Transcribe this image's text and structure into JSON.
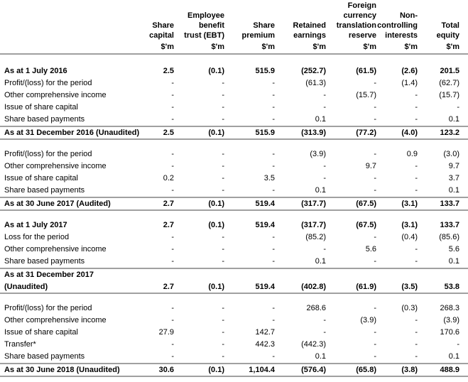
{
  "table": {
    "columns": [
      {
        "lines": [
          "Share",
          "capital"
        ],
        "unit": "$'m"
      },
      {
        "lines": [
          "Employee",
          "benefit",
          "trust (EBT)"
        ],
        "unit": "$'m"
      },
      {
        "lines": [
          "Share",
          "premium"
        ],
        "unit": "$'m"
      },
      {
        "lines": [
          "Retained",
          "earnings"
        ],
        "unit": "$'m"
      },
      {
        "lines": [
          "Foreign",
          "currency",
          "translation",
          "reserve"
        ],
        "unit": "$'m"
      },
      {
        "lines": [
          "Non-",
          "controlling",
          "interests"
        ],
        "unit": "$'m"
      },
      {
        "lines": [
          "Total",
          "equity"
        ],
        "unit": "$'m"
      }
    ],
    "groups": [
      [
        {
          "label": "As at 1 July 2016",
          "bold": true,
          "values": [
            "2.5",
            "(0.1)",
            "515.9",
            "(252.7)",
            "(61.5)",
            "(2.6)",
            "201.5"
          ]
        },
        {
          "label": "Profit/(loss) for the period",
          "values": [
            "-",
            "-",
            "-",
            "(61.3)",
            "-",
            "(1.4)",
            "(62.7)"
          ]
        },
        {
          "label": "Other comprehensive income",
          "values": [
            "-",
            "-",
            "-",
            "-",
            "(15.7)",
            "-",
            "(15.7)"
          ]
        },
        {
          "label": "Issue of share capital",
          "values": [
            "-",
            "-",
            "-",
            "-",
            "-",
            "-",
            "-"
          ]
        },
        {
          "label": "Share based payments",
          "values": [
            "-",
            "-",
            "-",
            "0.1",
            "-",
            "-",
            "0.1"
          ]
        },
        {
          "label": "As at 31 December 2016 (Unaudited)",
          "bold": true,
          "total": true,
          "values": [
            "2.5",
            "(0.1)",
            "515.9",
            "(313.9)",
            "(77.2)",
            "(4.0)",
            "123.2"
          ]
        }
      ],
      [
        {
          "label": "Profit/(loss) for the period",
          "values": [
            "-",
            "-",
            "-",
            "(3.9)",
            "-",
            "0.9",
            "(3.0)"
          ]
        },
        {
          "label": "Other comprehensive income",
          "values": [
            "-",
            "-",
            "-",
            "-",
            "9.7",
            "-",
            "9.7"
          ]
        },
        {
          "label": "Issue of share capital",
          "values": [
            "0.2",
            "-",
            "3.5",
            "-",
            "-",
            "-",
            "3.7"
          ]
        },
        {
          "label": "Share based payments",
          "values": [
            "-",
            "-",
            "-",
            "0.1",
            "-",
            "-",
            "0.1"
          ]
        },
        {
          "label": "As at 30 June 2017 (Audited)",
          "bold": true,
          "total": true,
          "values": [
            "2.7",
            "(0.1)",
            "519.4",
            "(317.7)",
            "(67.5)",
            "(3.1)",
            "133.7"
          ]
        }
      ],
      [
        {
          "label": "As at 1 July 2017",
          "bold": true,
          "values": [
            "2.7",
            "(0.1)",
            "519.4",
            "(317.7)",
            "(67.5)",
            "(3.1)",
            "133.7"
          ]
        },
        {
          "label": "Loss for the period",
          "values": [
            "-",
            "-",
            "-",
            "(85.2)",
            "-",
            "(0.4)",
            "(85.6)"
          ]
        },
        {
          "label": "Other comprehensive income",
          "values": [
            "-",
            "-",
            "-",
            "-",
            "5.6",
            "-",
            "5.6"
          ]
        },
        {
          "label": "Share based payments",
          "values": [
            "-",
            "-",
            "-",
            "0.1",
            "-",
            "-",
            "0.1"
          ]
        },
        {
          "label": [
            "As at 31 December 2017",
            "(Unaudited)"
          ],
          "bold": true,
          "total": true,
          "values": [
            "2.7",
            "(0.1)",
            "519.4",
            "(402.8)",
            "(61.9)",
            "(3.5)",
            "53.8"
          ]
        }
      ],
      [
        {
          "label": "Profit/(loss) for the period",
          "values": [
            "-",
            "-",
            "-",
            "268.6",
            "-",
            "(0.3)",
            "268.3"
          ]
        },
        {
          "label": "Other comprehensive income",
          "values": [
            "-",
            "-",
            "-",
            "-",
            "(3.9)",
            "-",
            "(3.9)"
          ]
        },
        {
          "label": "Issue of share capital",
          "values": [
            "27.9",
            "-",
            "142.7",
            "-",
            "-",
            "-",
            "170.6"
          ]
        },
        {
          "label": "Transfer*",
          "values": [
            "-",
            "-",
            "442.3",
            "(442.3)",
            "-",
            "-",
            "-"
          ]
        },
        {
          "label": "Share based payments",
          "values": [
            "-",
            "-",
            "-",
            "0.1",
            "-",
            "-",
            "0.1"
          ]
        },
        {
          "label": "As at 30 June 2018 (Unaudited)",
          "bold": true,
          "total": true,
          "values": [
            "30.6",
            "(0.1)",
            "1,104.4",
            "(576.4)",
            "(65.8)",
            "(3.8)",
            "488.9"
          ]
        }
      ]
    ]
  }
}
